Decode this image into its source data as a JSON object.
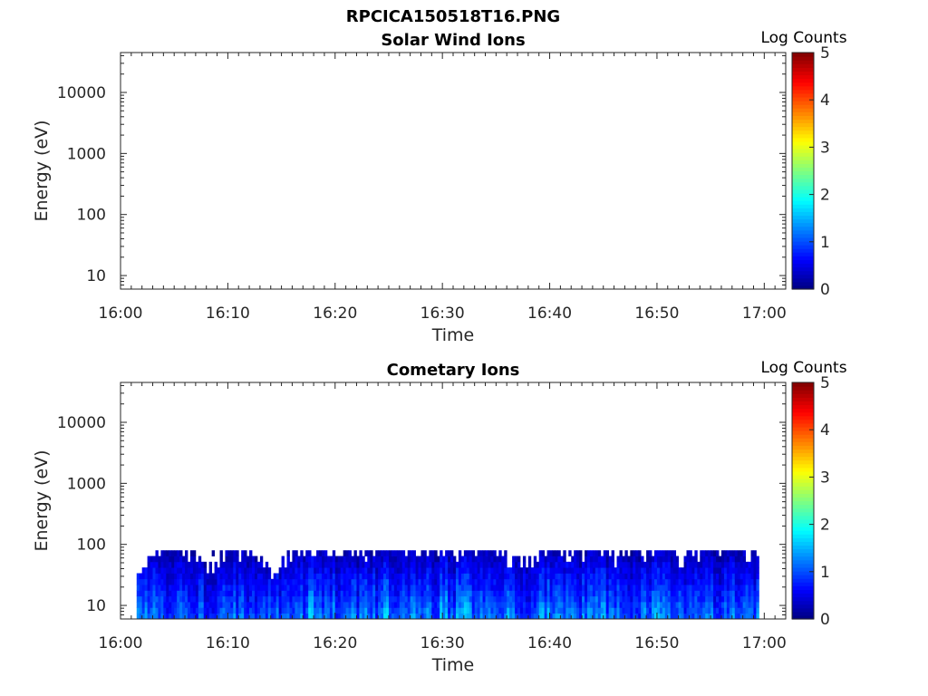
{
  "figure_title": "RPCICA150518T16.PNG",
  "chart_data": [
    {
      "type": "heatmap",
      "title": "Solar Wind Ions",
      "xlabel": "Time",
      "ylabel": "Energy (eV)",
      "x_ticks": [
        "16:00",
        "16:10",
        "16:20",
        "16:30",
        "16:40",
        "16:50",
        "17:00"
      ],
      "x_range": [
        "16:00",
        "17:02"
      ],
      "y_scale": "log",
      "y_ticks": [
        "10",
        "100",
        "1000",
        "10000"
      ],
      "y_range": [
        6,
        45000
      ],
      "colorbar": {
        "label": "Log Counts",
        "ticks": [
          "0",
          "1",
          "2",
          "3",
          "4",
          "5"
        ],
        "range": [
          0,
          5
        ],
        "colormap": "jet"
      },
      "data": "empty (no counts)"
    },
    {
      "type": "heatmap",
      "title": "Cometary Ions",
      "xlabel": "Time",
      "ylabel": "Energy (eV)",
      "x_ticks": [
        "16:00",
        "16:10",
        "16:20",
        "16:30",
        "16:40",
        "16:50",
        "17:00"
      ],
      "x_range": [
        "16:00",
        "17:02"
      ],
      "y_scale": "log",
      "y_ticks": [
        "10",
        "100",
        "1000",
        "10000"
      ],
      "y_range": [
        6,
        45000
      ],
      "colorbar": {
        "label": "Log Counts",
        "ticks": [
          "0",
          "1",
          "2",
          "3",
          "4",
          "5"
        ],
        "range": [
          0,
          5
        ],
        "colormap": "jet"
      },
      "data_extent": {
        "time_start": "16:01:30",
        "time_end": "16:59:30",
        "energy_min_eV": 6,
        "energy_max_eV": 80
      },
      "intensity_profile": {
        "times": [
          "16:02",
          "16:04",
          "16:06",
          "16:08",
          "16:10",
          "16:12",
          "16:14",
          "16:16",
          "16:18",
          "16:20",
          "16:22",
          "16:24",
          "16:26",
          "16:28",
          "16:30",
          "16:32",
          "16:34",
          "16:36",
          "16:38",
          "16:40",
          "16:42",
          "16:44",
          "16:46",
          "16:48",
          "16:50",
          "16:52",
          "16:54",
          "16:56",
          "16:58"
        ],
        "peak_log_counts": [
          1.6,
          1.4,
          1.2,
          1.3,
          1.4,
          1.3,
          1.2,
          1.8,
          1.7,
          1.5,
          1.4,
          1.7,
          1.6,
          1.5,
          1.7,
          1.8,
          1.5,
          1.6,
          1.3,
          1.7,
          1.4,
          1.6,
          1.5,
          1.3,
          1.6,
          1.3,
          1.5,
          1.4,
          1.7
        ],
        "top_energy_eV": [
          40,
          80,
          80,
          40,
          80,
          60,
          30,
          80,
          80,
          80,
          80,
          80,
          80,
          80,
          80,
          80,
          80,
          60,
          50,
          80,
          80,
          80,
          60,
          80,
          80,
          60,
          80,
          80,
          80
        ]
      }
    }
  ]
}
